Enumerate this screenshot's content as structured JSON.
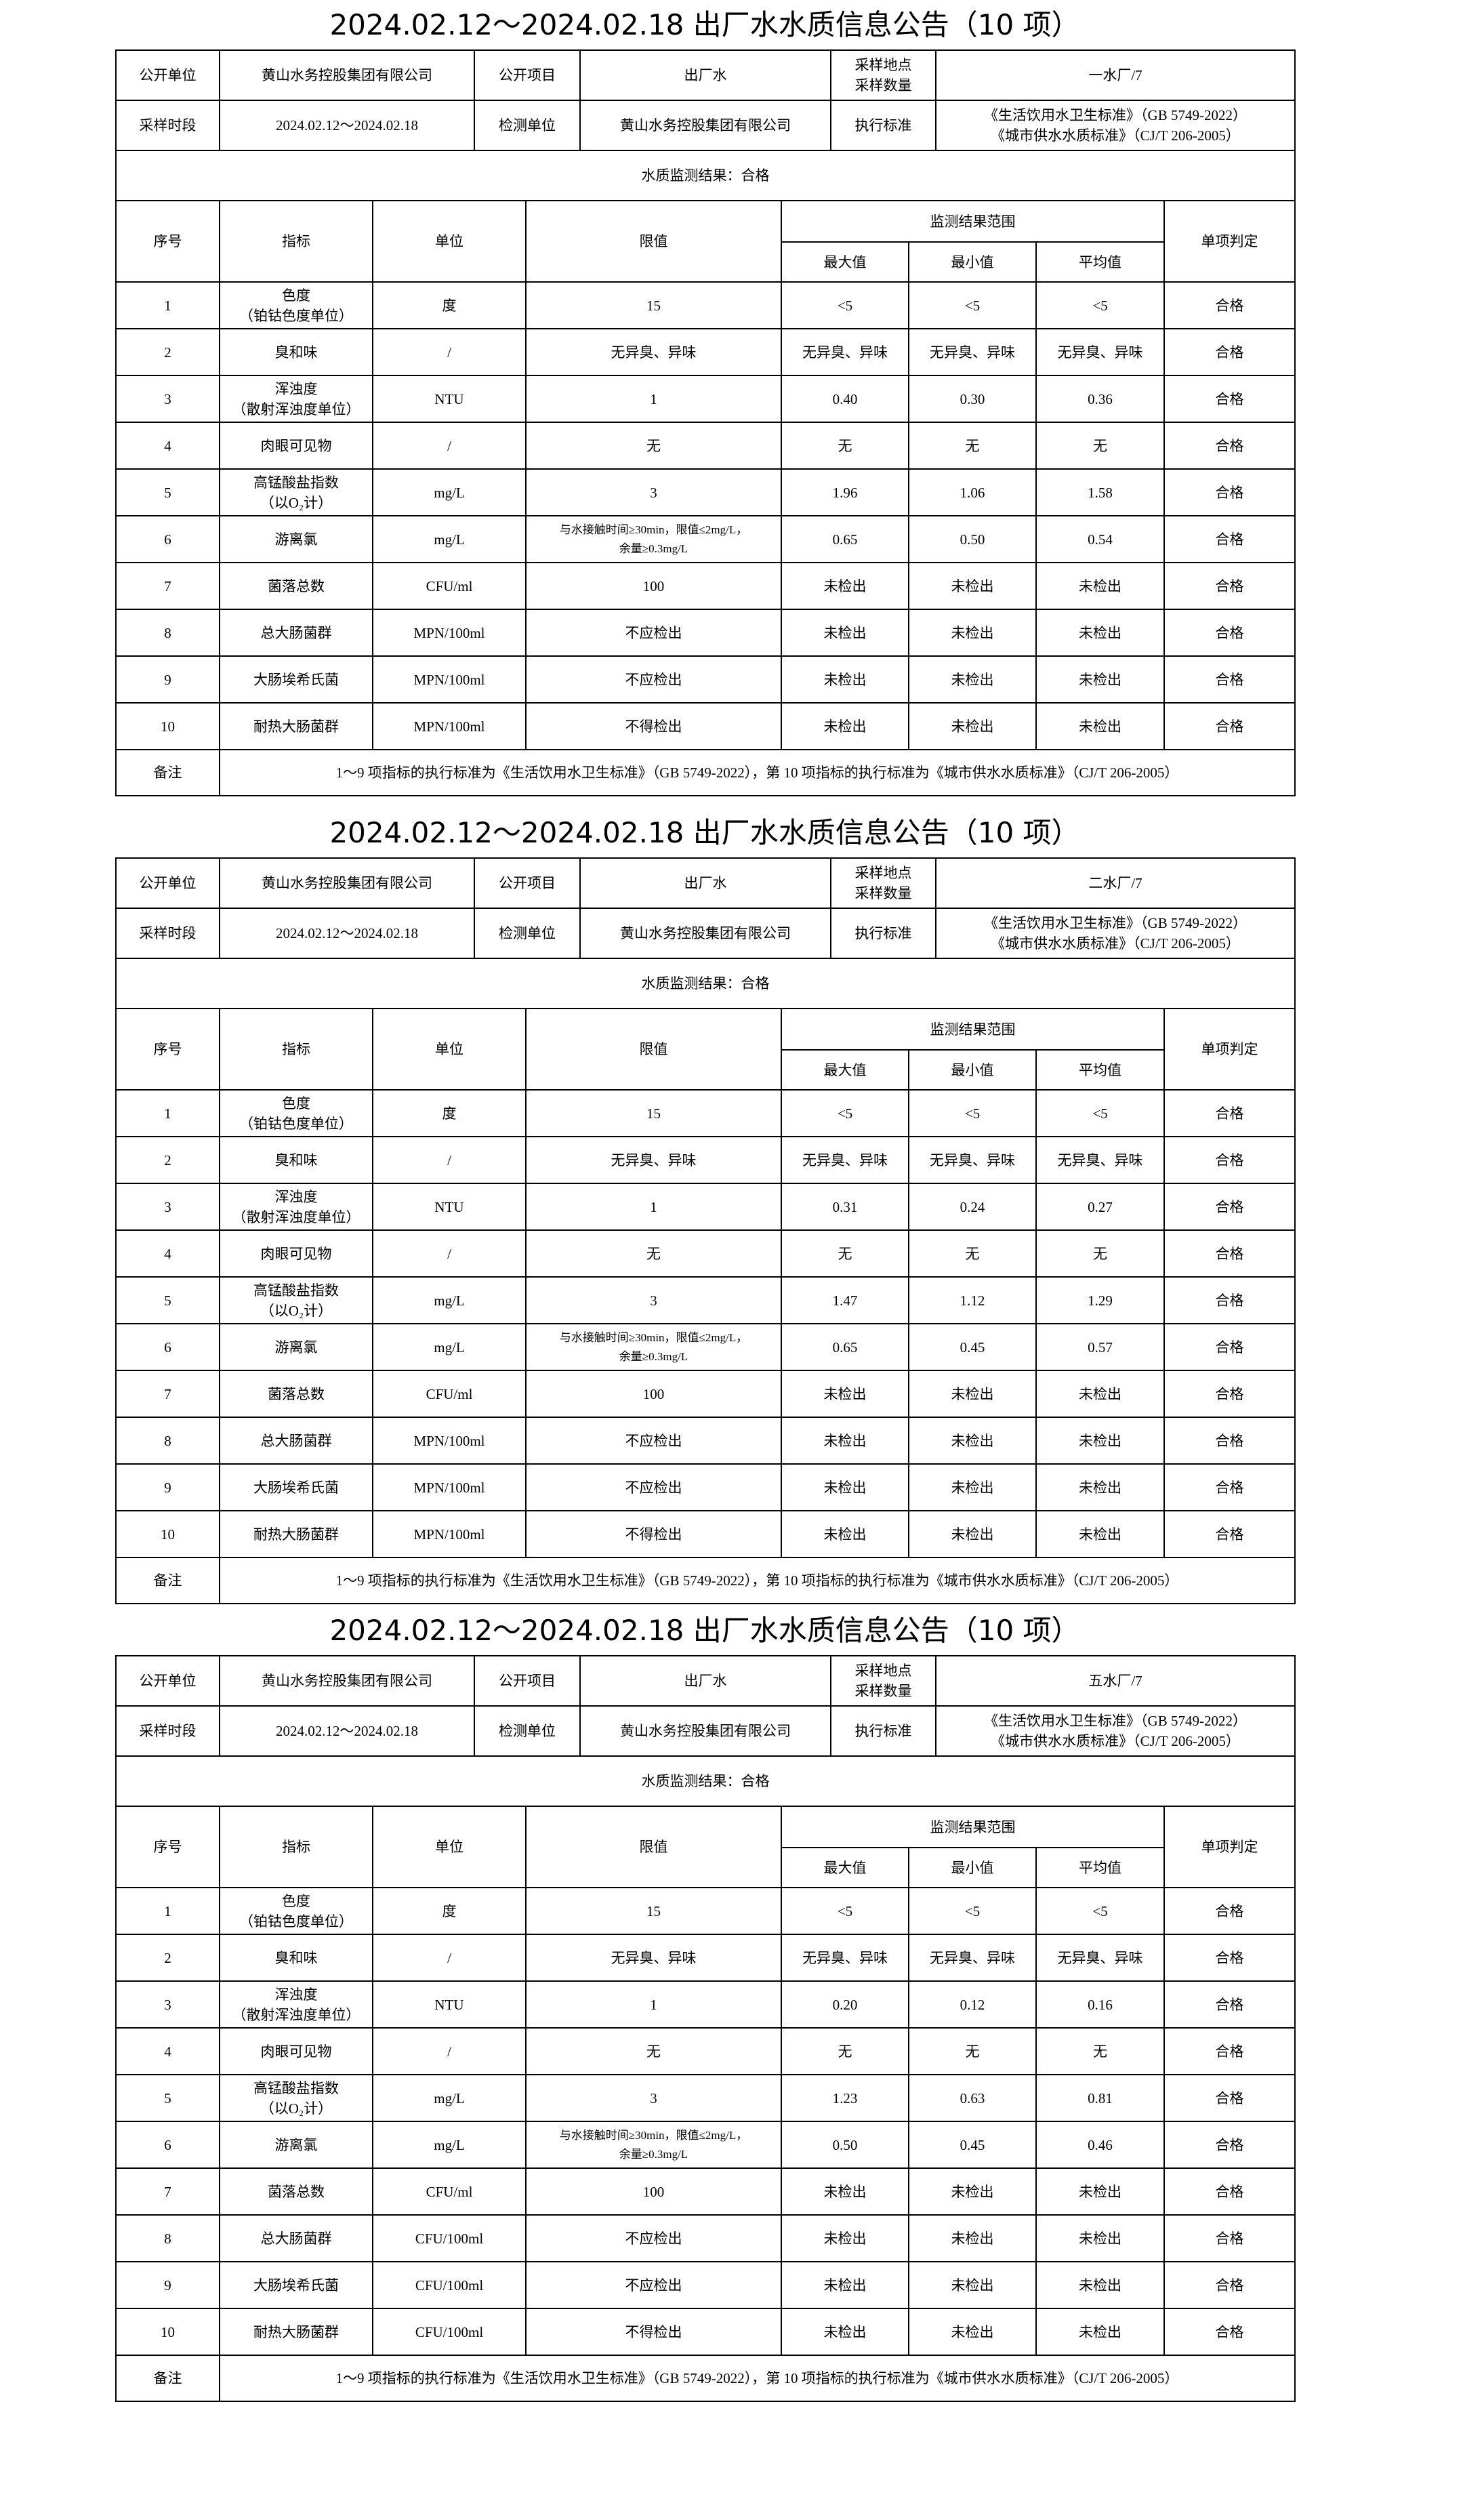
{
  "labels": {
    "publisher": "公开单位",
    "project": "公开项目",
    "sampling_site": "采样地点",
    "sampling_count": "采样数量",
    "period": "采样时段",
    "lab": "检测单位",
    "standard": "执行标准",
    "seq": "序号",
    "indicator": "指标",
    "unit": "单位",
    "limit": "限值",
    "range": "监测结果范围",
    "max": "最大值",
    "min": "最小值",
    "avg": "平均值",
    "judgement": "单项判定",
    "remark": "备注"
  },
  "reports": [
    {
      "title": "2024.02.12～2024.02.18 出厂水水质信息公告（10 项）",
      "publisher": "黄山水务控股集团有限公司",
      "project": "出厂水",
      "site_count": "一水厂/7",
      "period": "2024.02.12～2024.02.18",
      "lab": "黄山水务控股集团有限公司",
      "standard_1": "《生活饮用水卫生标准》（GB 5749-2022）",
      "standard_2": "《城市供水水质标准》（CJ/T 206-2005）",
      "result": "水质监测结果：合格",
      "rows": [
        {
          "no": "1",
          "name": "色度",
          "name2": "（铂钴色度单位）",
          "unit": "度",
          "limit": "15",
          "max": "<5",
          "min": "<5",
          "avg": "<5",
          "judge": "合格"
        },
        {
          "no": "2",
          "name": "臭和味",
          "name2": "",
          "unit": "/",
          "limit": "无异臭、异味",
          "max": "无异臭、异味",
          "min": "无异臭、异味",
          "avg": "无异臭、异味",
          "judge": "合格"
        },
        {
          "no": "3",
          "name": "浑浊度",
          "name2": "（散射浑浊度单位）",
          "unit": "NTU",
          "limit": "1",
          "max": "0.40",
          "min": "0.30",
          "avg": "0.36",
          "judge": "合格"
        },
        {
          "no": "4",
          "name": "肉眼可见物",
          "name2": "",
          "unit": "/",
          "limit": "无",
          "max": "无",
          "min": "无",
          "avg": "无",
          "judge": "合格"
        },
        {
          "no": "5",
          "name": "高锰酸盐指数",
          "name2": "（以O₂计）",
          "unit": "mg/L",
          "limit": "3",
          "max": "1.96",
          "min": "1.06",
          "avg": "1.58",
          "judge": "合格"
        },
        {
          "no": "6",
          "name": "游离氯",
          "name2": "",
          "unit": "mg/L",
          "limit": "与水接触时间≥30min，限值≤2mg/L，",
          "limit2": "余量≥0.3mg/L",
          "max": "0.65",
          "min": "0.50",
          "avg": "0.54",
          "judge": "合格"
        },
        {
          "no": "7",
          "name": "菌落总数",
          "name2": "",
          "unit": "CFU/ml",
          "limit": "100",
          "max": "未检出",
          "min": "未检出",
          "avg": "未检出",
          "judge": "合格"
        },
        {
          "no": "8",
          "name": "总大肠菌群",
          "name2": "",
          "unit": "MPN/100ml",
          "limit": "不应检出",
          "max": "未检出",
          "min": "未检出",
          "avg": "未检出",
          "judge": "合格"
        },
        {
          "no": "9",
          "name": "大肠埃希氏菌",
          "name2": "",
          "unit": "MPN/100ml",
          "limit": "不应检出",
          "max": "未检出",
          "min": "未检出",
          "avg": "未检出",
          "judge": "合格"
        },
        {
          "no": "10",
          "name": "耐热大肠菌群",
          "name2": "",
          "unit": "MPN/100ml",
          "limit": "不得检出",
          "max": "未检出",
          "min": "未检出",
          "avg": "未检出",
          "judge": "合格"
        }
      ],
      "remark": "1～9 项指标的执行标准为《生活饮用水卫生标准》（GB 5749-2022），第 10 项指标的执行标准为《城市供水水质标准》（CJ/T 206-2005）"
    },
    {
      "title": "2024.02.12～2024.02.18 出厂水水质信息公告（10 项）",
      "publisher": "黄山水务控股集团有限公司",
      "project": "出厂水",
      "site_count": "二水厂/7",
      "period": "2024.02.12～2024.02.18",
      "lab": "黄山水务控股集团有限公司",
      "standard_1": "《生活饮用水卫生标准》（GB 5749-2022）",
      "standard_2": "《城市供水水质标准》（CJ/T 206-2005）",
      "result": "水质监测结果：合格",
      "rows": [
        {
          "no": "1",
          "name": "色度",
          "name2": "（铂钴色度单位）",
          "unit": "度",
          "limit": "15",
          "max": "<5",
          "min": "<5",
          "avg": "<5",
          "judge": "合格"
        },
        {
          "no": "2",
          "name": "臭和味",
          "name2": "",
          "unit": "/",
          "limit": "无异臭、异味",
          "max": "无异臭、异味",
          "min": "无异臭、异味",
          "avg": "无异臭、异味",
          "judge": "合格"
        },
        {
          "no": "3",
          "name": "浑浊度",
          "name2": "（散射浑浊度单位）",
          "unit": "NTU",
          "limit": "1",
          "max": "0.31",
          "min": "0.24",
          "avg": "0.27",
          "judge": "合格"
        },
        {
          "no": "4",
          "name": "肉眼可见物",
          "name2": "",
          "unit": "/",
          "limit": "无",
          "max": "无",
          "min": "无",
          "avg": "无",
          "judge": "合格"
        },
        {
          "no": "5",
          "name": "高锰酸盐指数",
          "name2": "（以O₂计）",
          "unit": "mg/L",
          "limit": "3",
          "max": "1.47",
          "min": "1.12",
          "avg": "1.29",
          "judge": "合格"
        },
        {
          "no": "6",
          "name": "游离氯",
          "name2": "",
          "unit": "mg/L",
          "limit": "与水接触时间≥30min，限值≤2mg/L，",
          "limit2": "余量≥0.3mg/L",
          "max": "0.65",
          "min": "0.45",
          "avg": "0.57",
          "judge": "合格"
        },
        {
          "no": "7",
          "name": "菌落总数",
          "name2": "",
          "unit": "CFU/ml",
          "limit": "100",
          "max": "未检出",
          "min": "未检出",
          "avg": "未检出",
          "judge": "合格"
        },
        {
          "no": "8",
          "name": "总大肠菌群",
          "name2": "",
          "unit": "MPN/100ml",
          "limit": "不应检出",
          "max": "未检出",
          "min": "未检出",
          "avg": "未检出",
          "judge": "合格"
        },
        {
          "no": "9",
          "name": "大肠埃希氏菌",
          "name2": "",
          "unit": "MPN/100ml",
          "limit": "不应检出",
          "max": "未检出",
          "min": "未检出",
          "avg": "未检出",
          "judge": "合格"
        },
        {
          "no": "10",
          "name": "耐热大肠菌群",
          "name2": "",
          "unit": "MPN/100ml",
          "limit": "不得检出",
          "max": "未检出",
          "min": "未检出",
          "avg": "未检出",
          "judge": "合格"
        }
      ],
      "remark": "1～9 项指标的执行标准为《生活饮用水卫生标准》（GB 5749-2022），第 10 项指标的执行标准为《城市供水水质标准》（CJ/T 206-2005）"
    },
    {
      "title": "2024.02.12～2024.02.18 出厂水水质信息公告（10 项）",
      "publisher": "黄山水务控股集团有限公司",
      "project": "出厂水",
      "site_count": "五水厂/7",
      "period": "2024.02.12～2024.02.18",
      "lab": "黄山水务控股集团有限公司",
      "standard_1": "《生活饮用水卫生标准》（GB 5749-2022）",
      "standard_2": "《城市供水水质标准》（CJ/T 206-2005）",
      "result": "水质监测结果：合格",
      "rows": [
        {
          "no": "1",
          "name": "色度",
          "name2": "（铂钴色度单位）",
          "unit": "度",
          "limit": "15",
          "max": "<5",
          "min": "<5",
          "avg": "<5",
          "judge": "合格"
        },
        {
          "no": "2",
          "name": "臭和味",
          "name2": "",
          "unit": "/",
          "limit": "无异臭、异味",
          "max": "无异臭、异味",
          "min": "无异臭、异味",
          "avg": "无异臭、异味",
          "judge": "合格"
        },
        {
          "no": "3",
          "name": "浑浊度",
          "name2": "（散射浑浊度单位）",
          "unit": "NTU",
          "limit": "1",
          "max": "0.20",
          "min": "0.12",
          "avg": "0.16",
          "judge": "合格"
        },
        {
          "no": "4",
          "name": "肉眼可见物",
          "name2": "",
          "unit": "/",
          "limit": "无",
          "max": "无",
          "min": "无",
          "avg": "无",
          "judge": "合格"
        },
        {
          "no": "5",
          "name": "高锰酸盐指数",
          "name2": "（以O₂计）",
          "unit": "mg/L",
          "limit": "3",
          "max": "1.23",
          "min": "0.63",
          "avg": "0.81",
          "judge": "合格"
        },
        {
          "no": "6",
          "name": "游离氯",
          "name2": "",
          "unit": "mg/L",
          "limit": "与水接触时间≥30min，限值≤2mg/L，",
          "limit2": "余量≥0.3mg/L",
          "max": "0.50",
          "min": "0.45",
          "avg": "0.46",
          "judge": "合格"
        },
        {
          "no": "7",
          "name": "菌落总数",
          "name2": "",
          "unit": "CFU/ml",
          "limit": "100",
          "max": "未检出",
          "min": "未检出",
          "avg": "未检出",
          "judge": "合格"
        },
        {
          "no": "8",
          "name": "总大肠菌群",
          "name2": "",
          "unit": "CFU/100ml",
          "limit": "不应检出",
          "max": "未检出",
          "min": "未检出",
          "avg": "未检出",
          "judge": "合格"
        },
        {
          "no": "9",
          "name": "大肠埃希氏菌",
          "name2": "",
          "unit": "CFU/100ml",
          "limit": "不应检出",
          "max": "未检出",
          "min": "未检出",
          "avg": "未检出",
          "judge": "合格"
        },
        {
          "no": "10",
          "name": "耐热大肠菌群",
          "name2": "",
          "unit": "CFU/100ml",
          "limit": "不得检出",
          "max": "未检出",
          "min": "未检出",
          "avg": "未检出",
          "judge": "合格"
        }
      ],
      "remark": "1～9 项指标的执行标准为《生活饮用水卫生标准》（GB 5749-2022），第 10 项指标的执行标准为《城市供水水质标准》（CJ/T 206-2005）"
    }
  ]
}
